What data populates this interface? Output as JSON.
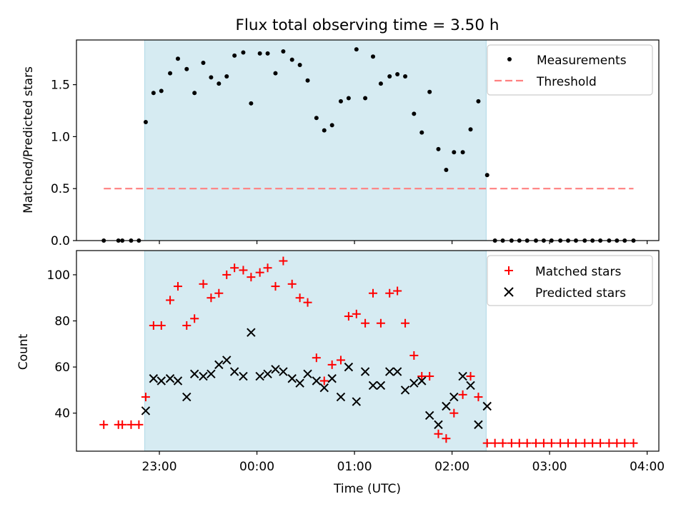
{
  "title": "Flux total observing time = 3.50 h",
  "chart_data": [
    {
      "type": "scatter",
      "ylabel": "Matched/Predicted stars",
      "xlabel": "",
      "x_unit": "hours from 00:00 UTC",
      "xlim": [
        -1.85,
        4.12
      ],
      "ylim": [
        0.0,
        1.93
      ],
      "yticks": [
        "0.0",
        "0.5",
        "1.0",
        "1.5"
      ],
      "ytick_values": [
        0.0,
        0.5,
        1.0,
        1.5
      ],
      "xticks_shown": false,
      "shaded_span": {
        "start": -1.15,
        "end": 2.35,
        "color": "#add8e6"
      },
      "legend": {
        "position": "upper right",
        "entries": [
          "Measurements",
          "Threshold"
        ]
      },
      "threshold": {
        "name": "Threshold",
        "value": 0.5,
        "x_range": [
          -1.57,
          3.86
        ],
        "color": "#ff8080"
      },
      "series": [
        {
          "name": "Measurements",
          "color": "#000000",
          "x": [
            -1.57,
            -1.42,
            -1.38,
            -1.29,
            -1.21,
            -1.14,
            -1.06,
            -0.98,
            -0.89,
            -0.81,
            -0.72,
            -0.64,
            -0.55,
            -0.47,
            -0.39,
            -0.31,
            -0.23,
            -0.14,
            -0.06,
            0.03,
            0.11,
            0.19,
            0.27,
            0.36,
            0.44,
            0.52,
            0.61,
            0.69,
            0.77,
            0.86,
            0.94,
            1.02,
            1.11,
            1.19,
            1.27,
            1.36,
            1.44,
            1.52,
            1.61,
            1.69,
            1.77,
            1.86,
            1.94,
            2.02,
            2.11,
            2.19,
            2.27,
            2.36,
            2.44,
            2.52,
            2.61,
            2.69,
            2.77,
            2.86,
            2.94,
            3.02,
            3.11,
            3.19,
            3.27,
            3.36,
            3.44,
            3.52,
            3.61,
            3.69,
            3.77,
            3.86
          ],
          "y": [
            0,
            0,
            0,
            0,
            0,
            1.14,
            1.42,
            1.44,
            1.61,
            1.75,
            1.65,
            1.42,
            1.71,
            1.57,
            1.51,
            1.58,
            1.78,
            1.81,
            1.32,
            1.8,
            1.8,
            1.61,
            1.82,
            1.74,
            1.69,
            1.54,
            1.18,
            1.06,
            1.11,
            1.34,
            1.37,
            1.84,
            1.37,
            1.77,
            1.51,
            1.58,
            1.6,
            1.58,
            1.22,
            1.04,
            1.43,
            0.88,
            0.68,
            0.85,
            0.85,
            1.07,
            1.34,
            0.63,
            0,
            0,
            0,
            0,
            0,
            0,
            0,
            0,
            0,
            0,
            0,
            0,
            0,
            0,
            0,
            0,
            0,
            0
          ]
        }
      ]
    },
    {
      "type": "scatter",
      "ylabel": "Count",
      "xlabel": "Time (UTC)",
      "x_unit": "hours from 00:00 UTC",
      "xlim": [
        -1.85,
        4.12
      ],
      "ylim": [
        23.5,
        110.5
      ],
      "yticks": [
        "40",
        "60",
        "80",
        "100"
      ],
      "ytick_values": [
        40,
        60,
        80,
        100
      ],
      "xticks": [
        "23:00",
        "00:00",
        "01:00",
        "02:00",
        "03:00",
        "04:00"
      ],
      "xtick_values": [
        -1,
        0,
        1,
        2,
        3,
        4
      ],
      "shaded_span": {
        "start": -1.15,
        "end": 2.35,
        "color": "#add8e6"
      },
      "legend": {
        "position": "upper right",
        "entries": [
          "Matched stars",
          "Predicted stars"
        ]
      },
      "series": [
        {
          "name": "Matched stars",
          "marker": "+",
          "color": "#ff0000",
          "x": [
            -1.57,
            -1.42,
            -1.38,
            -1.29,
            -1.21,
            -1.14,
            -1.06,
            -0.98,
            -0.89,
            -0.81,
            -0.72,
            -0.64,
            -0.55,
            -0.47,
            -0.39,
            -0.31,
            -0.23,
            -0.14,
            -0.06,
            0.03,
            0.11,
            0.19,
            0.27,
            0.36,
            0.44,
            0.52,
            0.61,
            0.69,
            0.77,
            0.86,
            0.94,
            1.02,
            1.11,
            1.19,
            1.27,
            1.36,
            1.44,
            1.52,
            1.61,
            1.69,
            1.77,
            1.86,
            1.94,
            2.02,
            2.11,
            2.19,
            2.27,
            2.36,
            2.44,
            2.52,
            2.61,
            2.69,
            2.77,
            2.86,
            2.94,
            3.02,
            3.11,
            3.19,
            3.27,
            3.36,
            3.44,
            3.52,
            3.61,
            3.69,
            3.77,
            3.86
          ],
          "y": [
            35,
            35,
            35,
            35,
            35,
            47,
            78,
            78,
            89,
            95,
            78,
            81,
            96,
            90,
            92,
            100,
            103,
            102,
            99,
            101,
            103,
            95,
            106,
            96,
            90,
            88,
            64,
            54,
            61,
            63,
            82,
            83,
            79,
            92,
            79,
            92,
            93,
            79,
            65,
            56,
            56,
            31,
            29,
            40,
            48,
            56,
            47,
            27,
            27,
            27,
            27,
            27,
            27,
            27,
            27,
            27,
            27,
            27,
            27,
            27,
            27,
            27,
            27,
            27,
            27,
            27
          ]
        },
        {
          "name": "Predicted stars",
          "marker": "x",
          "color": "#000000",
          "x": [
            -1.14,
            -1.06,
            -0.98,
            -0.89,
            -0.81,
            -0.72,
            -0.64,
            -0.55,
            -0.47,
            -0.39,
            -0.31,
            -0.23,
            -0.14,
            -0.06,
            0.03,
            0.11,
            0.19,
            0.27,
            0.36,
            0.44,
            0.52,
            0.61,
            0.69,
            0.77,
            0.86,
            0.94,
            1.02,
            1.11,
            1.19,
            1.27,
            1.36,
            1.44,
            1.52,
            1.61,
            1.69,
            1.77,
            1.86,
            1.94,
            2.02,
            2.11,
            2.19,
            2.27,
            2.36
          ],
          "y": [
            41,
            55,
            54,
            55,
            54,
            47,
            57,
            56,
            57,
            61,
            63,
            58,
            56,
            75,
            56,
            57,
            59,
            58,
            55,
            53,
            57,
            54,
            51,
            55,
            47,
            60,
            45,
            58,
            52,
            52,
            58,
            58,
            50,
            53,
            54,
            39,
            35,
            43,
            47,
            56,
            52,
            35,
            43
          ]
        }
      ]
    }
  ]
}
